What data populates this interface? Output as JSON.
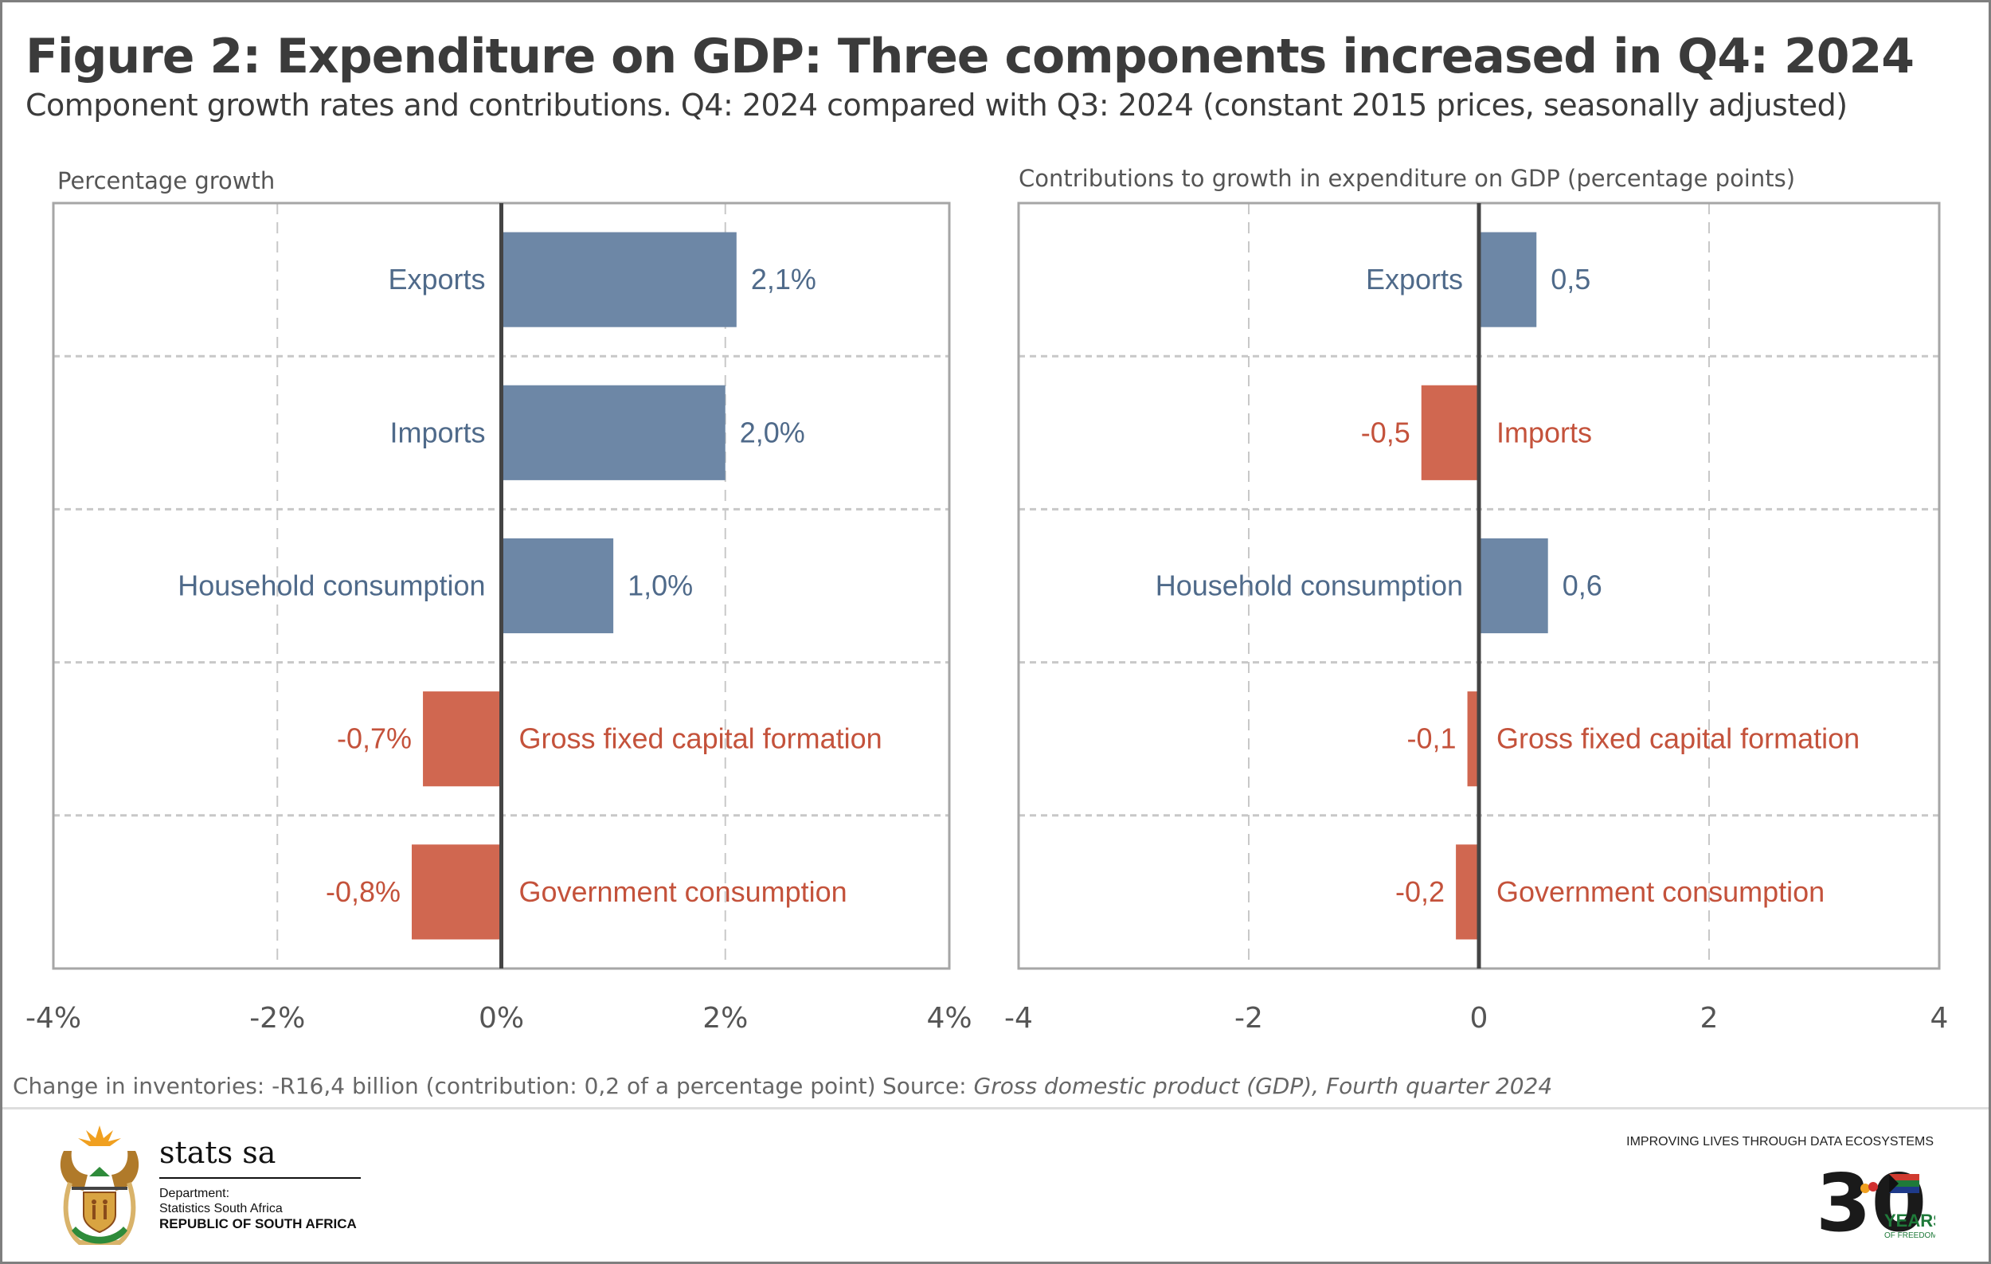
{
  "figure": {
    "title": "Figure 2: Expenditure on GDP: Three components increased in Q4: 2024",
    "subtitle": "Component growth rates and contributions. Q4: 2024 compared with Q3: 2024 (constant 2015 prices, seasonally adjusted)"
  },
  "colors": {
    "positive": "#6d87a6",
    "negative": "#d06750",
    "positive_text": "#4f6a8a",
    "negative_text": "#c4523b",
    "zero_line": "#444444",
    "grid": "#c8c8c8",
    "frame": "#a6a6a6"
  },
  "chart_data": [
    {
      "type": "bar",
      "orientation": "horizontal",
      "title": "Percentage growth",
      "categories": [
        "Exports",
        "Imports",
        "Household consumption",
        "Gross fixed capital formation",
        "Government consumption"
      ],
      "values": [
        2.1,
        2.0,
        1.0,
        -0.7,
        -0.8
      ],
      "value_labels": [
        "2,1%",
        "2,0%",
        "1,0%",
        "-0,7%",
        "-0,8%"
      ],
      "xlim": [
        -4,
        4
      ],
      "xticks": [
        -4,
        -2,
        0,
        2,
        4
      ],
      "xtick_labels": [
        "-4%",
        "-2%",
        "0%",
        "2%",
        "4%"
      ],
      "xlabel": "",
      "ylabel": "",
      "grid": true
    },
    {
      "type": "bar",
      "orientation": "horizontal",
      "title": "Contributions to growth in expenditure on GDP (percentage points)",
      "categories": [
        "Exports",
        "Imports",
        "Household consumption",
        "Gross fixed capital formation",
        "Government consumption"
      ],
      "values": [
        0.5,
        -0.5,
        0.6,
        -0.1,
        -0.2
      ],
      "value_labels": [
        "0,5",
        "-0,5",
        "0,6",
        "-0,1",
        "-0,2"
      ],
      "xlim": [
        -4,
        4
      ],
      "xticks": [
        -4,
        -2,
        0,
        2,
        4
      ],
      "xtick_labels": [
        "-4",
        "-2",
        "0",
        "2",
        "4"
      ],
      "xlabel": "",
      "ylabel": "",
      "grid": true
    }
  ],
  "footnotes": {
    "inventories": "Change in inventories: -R16,4 billion (contribution: 0,2 of a percentage point)",
    "source_prefix": "Source: ",
    "source_title": "Gross domestic product (GDP), Fourth quarter 2024"
  },
  "branding": {
    "stats_word": "stats sa",
    "dept_line1": "Department:",
    "dept_line2": "Statistics South Africa",
    "dept_line3": "REPUBLIC OF SOUTH AFRICA",
    "tagline": "IMPROVING LIVES THROUGH DATA ECOSYSTEMS",
    "anniversary_number": "30",
    "anniversary_line1": "YEARS",
    "anniversary_line2": "OF FREEDOM"
  }
}
